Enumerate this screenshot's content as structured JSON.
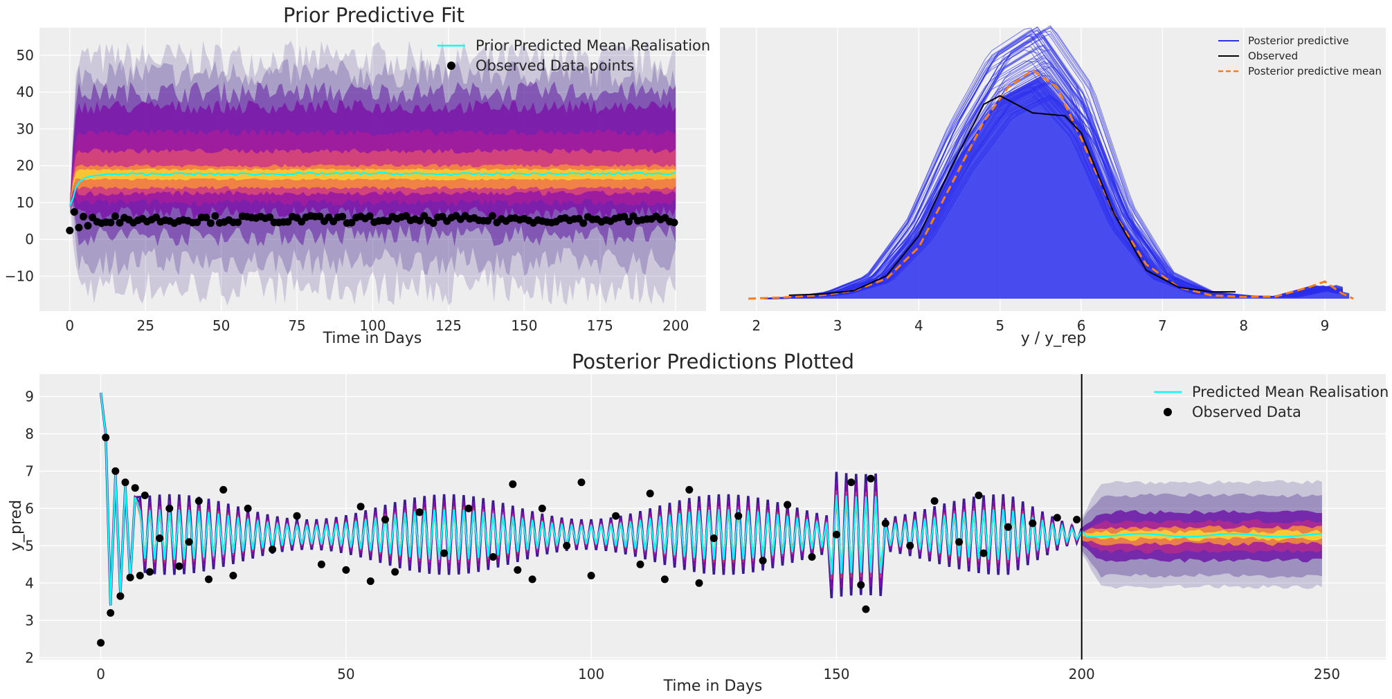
{
  "chart_data": [
    {
      "type": "line",
      "title": "Prior Predictive Fit",
      "xlabel": "Time in Days",
      "ylabel": "",
      "xlim": [
        -10,
        210
      ],
      "ylim": [
        -19.5,
        57.5
      ],
      "xticks": [
        0,
        25,
        50,
        75,
        100,
        125,
        150,
        175,
        200
      ],
      "yticks": [
        -10,
        0,
        10,
        20,
        30,
        40,
        50
      ],
      "grid": true,
      "legend_position": "top-right",
      "legend": [
        "Prior Predicted Mean Realisation",
        "Observed Data points"
      ],
      "band": {
        "x_start": 0,
        "x_end": 200,
        "outer": [
          -13,
          49
        ],
        "inner": [
          7,
          36
        ],
        "core": [
          14,
          20
        ]
      },
      "series": [
        {
          "name": "Prior Predicted Mean Realisation",
          "color": "#00ffff",
          "x": [
            0,
            1,
            2,
            3,
            5,
            8,
            12,
            20,
            30,
            50,
            75,
            100,
            125,
            150,
            175,
            200
          ],
          "y": [
            9.2,
            11,
            14,
            15.5,
            16.7,
            17.3,
            17.6,
            17.7,
            17.8,
            17.7,
            17.8,
            17.9,
            17.7,
            17.8,
            17.8,
            18.0
          ]
        },
        {
          "name": "Observed Data points",
          "color": "#000000",
          "mode": "scatter",
          "x": [
            0,
            1,
            2,
            3,
            4,
            6,
            8,
            10,
            15,
            25,
            50,
            75,
            100,
            125,
            150,
            175,
            199
          ],
          "y": [
            2.4,
            8,
            6.9,
            3.2,
            7,
            3.7,
            6.7,
            4.1,
            6.4,
            4.2,
            5.5,
            5.5,
            6.7,
            5.5,
            5.8,
            5.4,
            5.7
          ]
        }
      ]
    },
    {
      "type": "line",
      "title": "",
      "xlabel": "y / y_rep",
      "ylabel": "",
      "xlim": [
        1.55,
        9.75
      ],
      "xticks": [
        2,
        3,
        4,
        5,
        6,
        7,
        8,
        9
      ],
      "grid": true,
      "legend_position": "top-right",
      "legend": [
        "Posterior predictive",
        "Observed",
        "Posterior predictive mean"
      ],
      "series": [
        {
          "name": "Posterior predictive",
          "color": "#2a2eec",
          "x": [
            2.1,
            2.5,
            3,
            3.5,
            4,
            4.5,
            5,
            5.5,
            6,
            6.5,
            7,
            7.5,
            8,
            8.5,
            9,
            9.3
          ],
          "y": [
            0,
            0.002,
            0.01,
            0.035,
            0.12,
            0.26,
            0.37,
            0.41,
            0.32,
            0.14,
            0.04,
            0.01,
            0.004,
            0.003,
            0.02,
            0.01
          ]
        },
        {
          "name": "Observed",
          "color": "#000000",
          "x": [
            2.4,
            2.8,
            3.2,
            3.6,
            4.0,
            4.4,
            4.8,
            5.0,
            5.4,
            5.8,
            6.0,
            6.4,
            6.8,
            7.2,
            7.6,
            7.9
          ],
          "y": [
            0.006,
            0.008,
            0.014,
            0.04,
            0.11,
            0.23,
            0.34,
            0.355,
            0.325,
            0.32,
            0.29,
            0.15,
            0.05,
            0.02,
            0.012,
            0.012
          ]
        },
        {
          "name": "Posterior predictive mean",
          "color": "#fa7c17",
          "dash": true,
          "x": [
            1.9,
            2.3,
            2.8,
            3.2,
            3.6,
            4.0,
            4.4,
            4.8,
            5.1,
            5.4,
            5.7,
            6.0,
            6.4,
            6.8,
            7.2,
            7.6,
            8.0,
            8.4,
            8.8,
            9.0,
            9.2,
            9.35
          ],
          "y": [
            0,
            0.002,
            0.006,
            0.014,
            0.035,
            0.09,
            0.2,
            0.31,
            0.37,
            0.4,
            0.37,
            0.28,
            0.15,
            0.06,
            0.02,
            0.006,
            0.003,
            0.004,
            0.02,
            0.03,
            0.01,
            0.0
          ]
        }
      ]
    },
    {
      "type": "line",
      "title": "Posterior Predictions Plotted",
      "xlabel": "Time in Days",
      "ylabel": "y_pred",
      "xlim": [
        -12.5,
        262
      ],
      "ylim": [
        1.95,
        9.6
      ],
      "xticks": [
        0,
        50,
        100,
        150,
        200,
        250
      ],
      "yticks": [
        2,
        3,
        4,
        5,
        6,
        7,
        8,
        9
      ],
      "grid": true,
      "legend_position": "top-right",
      "legend": [
        "Predicted Mean Realisation",
        "Observed Data"
      ],
      "vline": 200,
      "band": {
        "x_start": 200,
        "x_end": 249,
        "outer": [
          3.9,
          6.7
        ],
        "inner": [
          4.6,
          5.9
        ]
      },
      "series": [
        {
          "name": "Predicted Mean Realisation",
          "color": "#00ffff",
          "x": [
            0,
            1,
            2,
            3,
            4,
            5,
            6,
            7,
            8,
            10,
            20,
            40,
            60,
            80,
            100,
            120,
            140,
            155,
            157,
            170,
            190,
            200,
            210,
            230,
            249
          ],
          "y": [
            9.1,
            8.0,
            3.4,
            6.9,
            3.7,
            6.6,
            4.1,
            6.3,
            4.3,
            6.0,
            5.7,
            5.5,
            5.6,
            5.4,
            5.3,
            5.5,
            5.4,
            4.0,
            6.7,
            5.3,
            5.2,
            5.25,
            5.28,
            5.3,
            5.3
          ]
        },
        {
          "name": "Observed Data",
          "color": "#000000",
          "mode": "scatter",
          "x": [
            0,
            1,
            2,
            3,
            4,
            5,
            6,
            7,
            8,
            9,
            10,
            12,
            14,
            16,
            18,
            20,
            22,
            25,
            27,
            30,
            35,
            40,
            45,
            50,
            53,
            55,
            58,
            60,
            65,
            70,
            75,
            80,
            84,
            85,
            88,
            90,
            95,
            98,
            100,
            105,
            110,
            112,
            115,
            120,
            122,
            125,
            130,
            135,
            140,
            145,
            150,
            153,
            155,
            156,
            157,
            160,
            165,
            170,
            175,
            179,
            180,
            185,
            190,
            195,
            199
          ],
          "y": [
            2.4,
            7.9,
            3.2,
            7.0,
            3.65,
            6.7,
            4.15,
            6.55,
            4.2,
            6.35,
            4.3,
            5.2,
            6.0,
            4.45,
            5.1,
            6.2,
            4.1,
            6.5,
            4.2,
            6.0,
            4.9,
            5.8,
            4.5,
            4.35,
            6.05,
            4.05,
            5.7,
            4.3,
            5.9,
            4.8,
            6.0,
            4.7,
            6.65,
            4.35,
            4.1,
            6.0,
            5.0,
            6.7,
            4.2,
            5.8,
            4.5,
            6.4,
            4.1,
            6.5,
            4.0,
            5.2,
            5.8,
            4.6,
            6.1,
            4.7,
            5.3,
            6.7,
            3.95,
            3.3,
            6.8,
            5.6,
            5.0,
            6.2,
            5.1,
            6.35,
            4.8,
            5.5,
            5.6,
            5.75,
            5.7
          ]
        }
      ]
    }
  ]
}
